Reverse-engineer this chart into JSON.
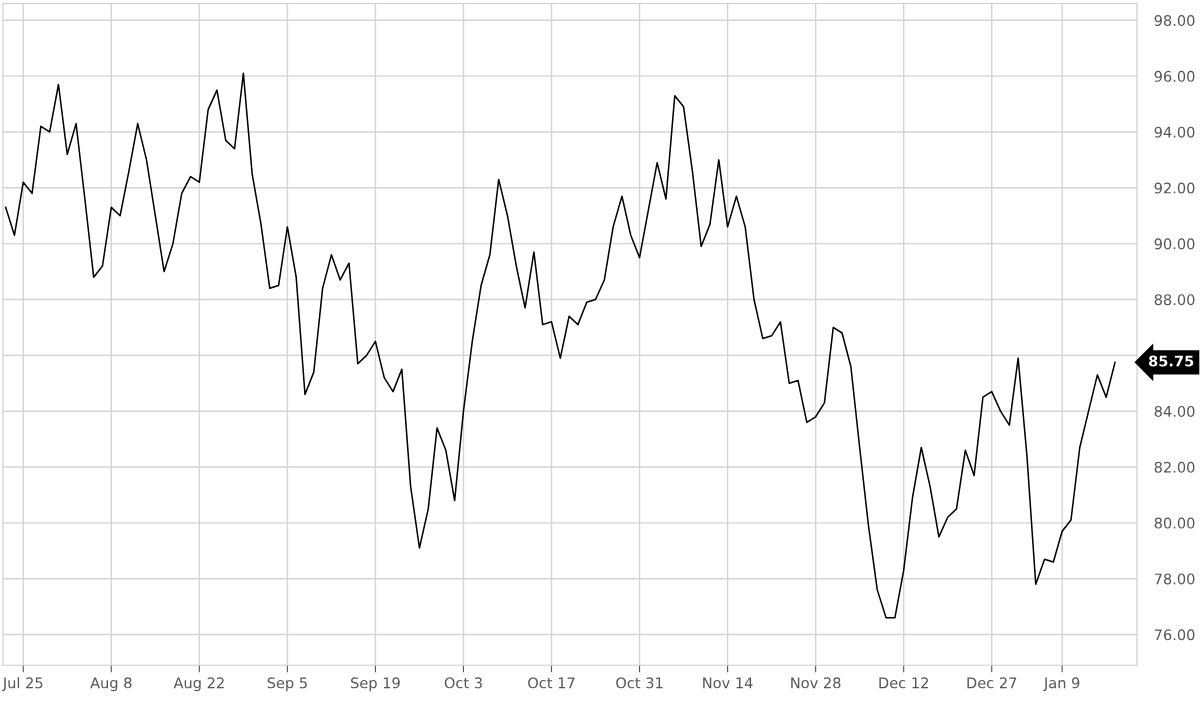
{
  "chart_data": {
    "type": "line",
    "categories": [
      null,
      null,
      "Jul 25",
      null,
      null,
      null,
      null,
      null,
      null,
      null,
      null,
      null,
      "Aug 8",
      null,
      null,
      null,
      null,
      null,
      null,
      null,
      null,
      null,
      "Aug 22",
      null,
      null,
      null,
      null,
      null,
      null,
      null,
      null,
      null,
      "Sep 5",
      null,
      null,
      null,
      null,
      null,
      null,
      null,
      null,
      null,
      "Sep 19",
      null,
      null,
      null,
      null,
      null,
      null,
      null,
      null,
      null,
      "Oct 3",
      null,
      null,
      null,
      null,
      null,
      null,
      null,
      null,
      null,
      "Oct 17",
      null,
      null,
      null,
      null,
      null,
      null,
      null,
      null,
      null,
      "Oct 31",
      null,
      null,
      null,
      null,
      null,
      null,
      null,
      null,
      null,
      "Nov 14",
      null,
      null,
      null,
      null,
      null,
      null,
      null,
      null,
      null,
      "Nov 28",
      null,
      null,
      null,
      null,
      null,
      null,
      null,
      null,
      null,
      "Dec 12",
      null,
      null,
      null,
      null,
      null,
      null,
      null,
      null,
      null,
      "Dec 27",
      null,
      null,
      null,
      null,
      null,
      null,
      null,
      "Jan 9",
      null,
      null,
      null,
      null,
      null,
      null
    ],
    "series": [
      {
        "color": "#000000",
        "values": [
          91.3,
          90.3,
          92.2,
          91.8,
          94.2,
          94.0,
          95.7,
          93.2,
          94.3,
          91.6,
          88.8,
          89.2,
          91.3,
          91.0,
          92.6,
          94.3,
          93.0,
          91.0,
          89.0,
          90.0,
          91.8,
          92.4,
          92.2,
          94.8,
          95.5,
          93.7,
          93.4,
          96.1,
          92.5,
          90.7,
          88.4,
          88.5,
          90.6,
          88.8,
          84.6,
          85.4,
          88.4,
          89.6,
          88.7,
          89.3,
          85.7,
          86.0,
          86.5,
          85.2,
          84.7,
          85.5,
          81.3,
          79.1,
          80.5,
          83.4,
          82.6,
          80.8,
          84.0,
          86.5,
          88.5,
          89.6,
          92.3,
          91.0,
          89.2,
          87.7,
          89.7,
          87.1,
          87.2,
          85.9,
          87.4,
          87.1,
          87.9,
          88.0,
          88.7,
          90.6,
          91.7,
          90.3,
          89.5,
          91.2,
          92.9,
          91.6,
          95.3,
          94.9,
          92.6,
          89.9,
          90.7,
          93.0,
          90.6,
          91.7,
          90.6,
          88.0,
          86.6,
          86.7,
          87.2,
          85.0,
          85.1,
          83.6,
          83.8,
          84.3,
          87.0,
          86.8,
          85.6,
          82.7,
          79.9,
          77.6,
          76.6,
          76.6,
          78.3,
          80.9,
          82.7,
          81.3,
          79.5,
          80.2,
          80.5,
          82.6,
          81.7,
          84.5,
          84.7,
          84.0,
          83.5,
          85.9,
          82.4,
          77.8,
          78.7,
          78.6,
          79.7,
          80.1,
          82.7,
          84.0,
          85.3,
          84.5,
          85.75
        ]
      }
    ],
    "ylim": [
      74.9,
      98.6
    ],
    "yticks": [
      {
        "value": 76,
        "label": "76.00"
      },
      {
        "value": 78,
        "label": "78.00"
      },
      {
        "value": 80,
        "label": "80.00"
      },
      {
        "value": 82,
        "label": "82.00"
      },
      {
        "value": 84,
        "label": "84.00"
      },
      {
        "value": 86,
        "label": null
      },
      {
        "value": 88,
        "label": "88.00"
      },
      {
        "value": 90,
        "label": "90.00"
      },
      {
        "value": 92,
        "label": "92.00"
      },
      {
        "value": 94,
        "label": "94.00"
      },
      {
        "value": 96,
        "label": "96.00"
      },
      {
        "value": 98,
        "label": "98.00"
      }
    ],
    "annotations": [
      "85.75"
    ],
    "grid": true,
    "legend": false,
    "marker": "none",
    "line_style": "solid"
  }
}
